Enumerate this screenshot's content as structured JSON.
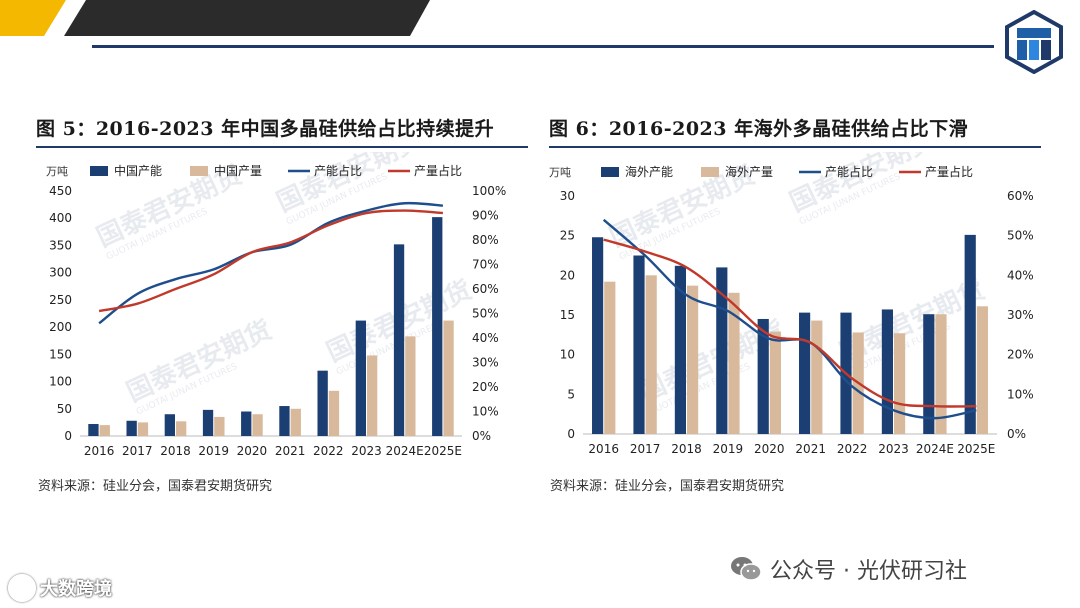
{
  "header": {
    "logo_icon": "futures-logo-icon"
  },
  "watermark": {
    "text_cn": "国泰君安期货",
    "text_en": "GUOTAI JUNAN FUTURES"
  },
  "left": {
    "title": "图 5：2016-2023 年中国多晶硅供给占比持续提升",
    "source": "资料来源：硅业分会，国泰君安期货研究"
  },
  "right": {
    "title": "图 6：2016-2023 年海外多晶硅供给占比下滑",
    "source": "资料来源：硅业分会，国泰君安期货研究"
  },
  "footer": {
    "wechat_label": "公众号 · 光伏研习社",
    "brand": "大数跨境"
  },
  "colors": {
    "navy": "#1b3f73",
    "tan": "#d9b99b",
    "blue_line": "#1f4e8c",
    "red_line": "#c0392b"
  },
  "chart_data": [
    {
      "type": "bar",
      "categories": [
        "2016",
        "2017",
        "2018",
        "2019",
        "2020",
        "2021",
        "2022",
        "2023",
        "2024E",
        "2025E"
      ],
      "ylabel": "万吨",
      "ylim": [
        0,
        450
      ],
      "yticks": [
        0,
        50,
        100,
        150,
        200,
        250,
        300,
        350,
        400,
        450
      ],
      "y2lim": [
        0,
        100
      ],
      "y2ticks": [
        "0%",
        "10%",
        "20%",
        "30%",
        "40%",
        "50%",
        "60%",
        "70%",
        "80%",
        "90%",
        "100%"
      ],
      "series": [
        {
          "name": "中国产能",
          "kind": "bar",
          "axis": "left",
          "color": "#1b3f73",
          "values": [
            22,
            28,
            40,
            48,
            45,
            55,
            120,
            212,
            352,
            402
          ]
        },
        {
          "name": "中国产量",
          "kind": "bar",
          "axis": "left",
          "color": "#d9b99b",
          "values": [
            20,
            25,
            27,
            35,
            40,
            50,
            83,
            148,
            183,
            212
          ]
        },
        {
          "name": "产能占比",
          "kind": "line",
          "axis": "right",
          "color": "#1f4e8c",
          "values": [
            46,
            58,
            64,
            68,
            75,
            78,
            87,
            92,
            95,
            94
          ]
        },
        {
          "name": "产量占比",
          "kind": "line",
          "axis": "right",
          "color": "#c0392b",
          "values": [
            51,
            54,
            60,
            66,
            75,
            79,
            86,
            91,
            92,
            91
          ]
        }
      ],
      "legend_position": "top",
      "grid": false
    },
    {
      "type": "bar",
      "categories": [
        "2016",
        "2017",
        "2018",
        "2019",
        "2020",
        "2021",
        "2022",
        "2023",
        "2024E",
        "2025E"
      ],
      "ylabel": "万吨",
      "ylim": [
        0,
        30
      ],
      "yticks": [
        0,
        5,
        10,
        15,
        20,
        25,
        30
      ],
      "y2lim": [
        0,
        60
      ],
      "y2ticks": [
        "0%",
        "10%",
        "20%",
        "30%",
        "40%",
        "50%",
        "60%"
      ],
      "series": [
        {
          "name": "海外产能",
          "kind": "bar",
          "axis": "left",
          "color": "#1b3f73",
          "values": [
            24.8,
            22.5,
            21.2,
            21.0,
            14.5,
            15.3,
            15.3,
            15.7,
            15.1,
            25.1
          ]
        },
        {
          "name": "海外产量",
          "kind": "bar",
          "axis": "left",
          "color": "#d9b99b",
          "values": [
            19.2,
            20.0,
            18.7,
            17.8,
            12.9,
            14.3,
            12.8,
            12.7,
            15.1,
            16.1
          ]
        },
        {
          "name": "产能占比",
          "kind": "line",
          "axis": "right",
          "color": "#1f4e8c",
          "values": [
            54,
            45,
            35,
            31,
            24,
            23,
            12,
            6,
            4,
            6
          ]
        },
        {
          "name": "产量占比",
          "kind": "line",
          "axis": "right",
          "color": "#c0392b",
          "values": [
            49,
            46,
            42,
            34,
            25,
            23,
            14,
            8,
            7,
            7
          ]
        }
      ],
      "legend_position": "top",
      "grid": false
    }
  ]
}
